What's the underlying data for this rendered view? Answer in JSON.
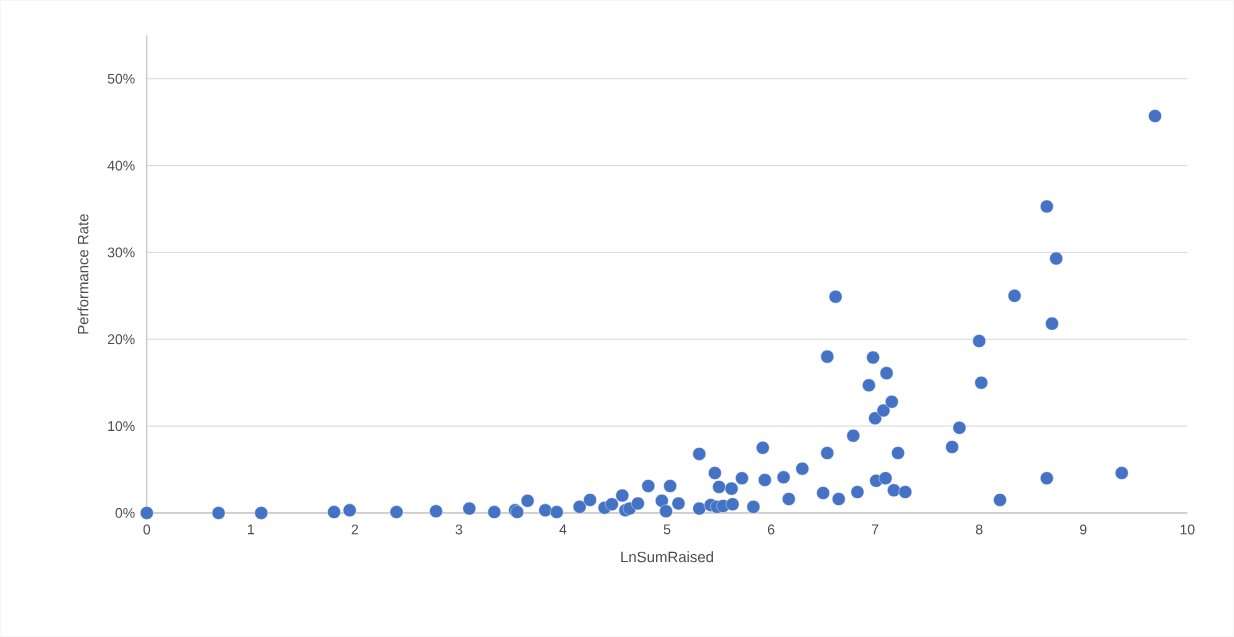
{
  "chart_data": {
    "type": "scatter",
    "xlabel": "LnSumRaised",
    "ylabel": "Performance Rate",
    "xlim": [
      0,
      10
    ],
    "xticks": [
      0,
      1,
      2,
      3,
      4,
      5,
      6,
      7,
      8,
      9,
      10
    ],
    "ylim": [
      0,
      55
    ],
    "yticks": [
      {
        "value": 0,
        "label": "0%"
      },
      {
        "value": 10,
        "label": "10%"
      },
      {
        "value": 20,
        "label": "20%"
      },
      {
        "value": 30,
        "label": "30%"
      },
      {
        "value": 40,
        "label": "40%"
      },
      {
        "value": 50,
        "label": "50%"
      }
    ],
    "grid": "y",
    "marker": "circle",
    "series": [
      {
        "color": "#4472c4",
        "x": [
          0,
          0.69,
          1.1,
          1.8,
          1.95,
          2.4,
          2.78,
          3.1,
          3.34,
          3.54,
          3.56,
          3.66,
          3.83,
          3.94,
          4.16,
          4.26,
          4.4,
          4.47,
          4.57,
          4.6,
          4.64,
          4.72,
          4.82,
          4.95,
          4.99,
          5.03,
          5.11,
          5.31,
          5.31,
          5.42,
          5.46,
          5.48,
          5.5,
          5.54,
          5.62,
          5.63,
          5.72,
          5.83,
          5.92,
          5.94,
          6.12,
          6.17,
          6.3,
          6.5,
          6.54,
          6.65,
          6.79,
          6.83,
          6.94,
          7.0,
          7.01,
          7.08,
          7.1,
          7.16,
          7.18,
          7.22,
          7.29,
          6.62,
          6.54,
          6.98,
          7.11,
          9.69,
          8.65,
          8.74,
          8.34,
          8.7,
          8.0,
          8.02,
          7.81,
          7.74,
          8.65,
          9.37,
          8.2
        ],
        "values": [
          0,
          0,
          0,
          0.1,
          0.3,
          0.1,
          0.2,
          0.5,
          0.1,
          0.3,
          0.1,
          1.4,
          0.3,
          0.1,
          0.7,
          1.5,
          0.6,
          1.0,
          2.0,
          0.3,
          0.5,
          1.1,
          3.1,
          1.4,
          0.2,
          3.1,
          1.1,
          6.8,
          0.5,
          0.9,
          4.6,
          0.7,
          3.0,
          0.8,
          2.8,
          1.0,
          4.0,
          0.7,
          7.5,
          3.8,
          4.1,
          1.6,
          5.1,
          2.3,
          6.9,
          1.6,
          8.9,
          2.4,
          14.7,
          10.9,
          3.7,
          11.8,
          4.0,
          12.8,
          2.6,
          6.9,
          2.4,
          24.9,
          18.0,
          17.9,
          16.1,
          45.7,
          35.3,
          29.3,
          25.0,
          21.8,
          19.8,
          15.0,
          9.8,
          7.6,
          4.0,
          4.6,
          1.5
        ]
      }
    ]
  }
}
